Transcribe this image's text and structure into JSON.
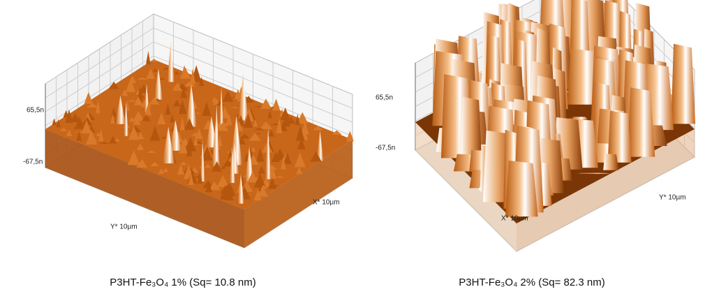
{
  "panels": [
    {
      "z_max": "65,5n",
      "z_min": "-67,5n",
      "x_axis": "X* 10µm",
      "y_axis": "Y* 10µm",
      "caption": "P3HT-Fe₃O₄ 1% (Sq= 10.8 nm)"
    },
    {
      "z_max": "65,5n",
      "z_min": "-67,5n",
      "x_axis": "X* 10µm",
      "y_axis": "Y* 10µm",
      "caption": "P3HT-Fe₃O₄ 2% (Sq= 82.3 nm)"
    }
  ]
}
